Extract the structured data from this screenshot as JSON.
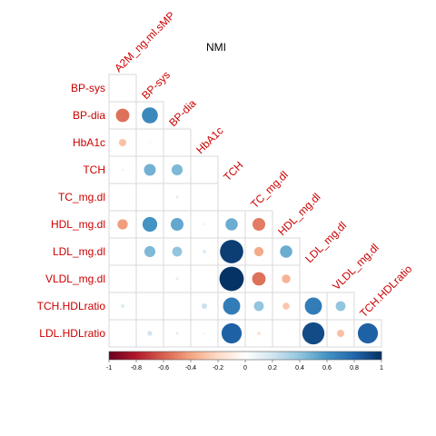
{
  "chart_data": {
    "type": "heatmap",
    "title": "NMI",
    "variables": [
      "A2M_ng.ml.sMP",
      "BP-sys",
      "BP-dia",
      "HbA1c",
      "TCH",
      "TC_mg.dl",
      "HDL_mg.dl",
      "LDL_mg.dl",
      "VLDL_mg.dl",
      "TCH.HDLratio",
      "LDL.HDLratio"
    ],
    "layout": "lower-triangle",
    "matrix": [
      [
        0.05
      ],
      [
        -0.55,
        0.65
      ],
      [
        -0.3,
        -0.08,
        0.06
      ],
      [
        -0.1,
        0.48,
        0.45,
        0.05
      ],
      [
        0.03,
        0.04,
        0.12,
        0.02
      ],
      [
        -0.42,
        0.6,
        0.52,
        -0.1,
        0.5,
        -0.52
      ],
      [
        0.0,
        0.45,
        0.4,
        0.15,
        0.95,
        -0.38,
        0.5
      ],
      [
        0.03,
        0.05,
        0.12,
        0.02,
        0.99,
        -0.55,
        -0.35
      ],
      [
        0.15,
        0.05,
        0.05,
        0.22,
        0.7,
        0.4,
        -0.28,
        0.7,
        0.4
      ],
      [
        0.05,
        0.2,
        0.12,
        0.08,
        0.82,
        -0.15,
        -0.03,
        0.9,
        -0.3,
        0.82
      ]
    ],
    "color_scale": {
      "colors": [
        "#67001F",
        "#B2182B",
        "#D6604D",
        "#F4A582",
        "#FDDBC7",
        "#FFFFFF",
        "#D1E5F0",
        "#92C5DE",
        "#4393C3",
        "#2166AC",
        "#053061"
      ],
      "limits": [
        -1,
        1
      ],
      "ticks": [
        "-1",
        "-0.8",
        "-0.6",
        "-0.4",
        "-0.2",
        "0",
        "0.2",
        "0.4",
        "0.6",
        "0.8",
        "1"
      ]
    }
  }
}
